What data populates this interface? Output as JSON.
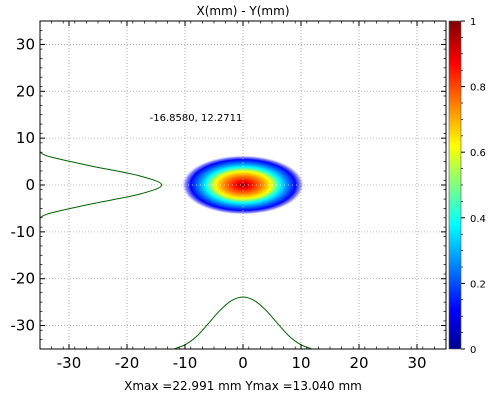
{
  "chart_data": {
    "type": "heatmap",
    "title": "X(mm) - Y(mm)",
    "xlim": [
      -35,
      35
    ],
    "ylim": [
      -35,
      35
    ],
    "x_ticks": [
      -30,
      -20,
      -10,
      0,
      10,
      20,
      30
    ],
    "y_ticks": [
      30,
      20,
      10,
      0,
      -10,
      -20,
      -30
    ],
    "grid": true,
    "colorbar": {
      "min": 0,
      "max": 1,
      "ticks": [
        0,
        0.2,
        0.4,
        0.6,
        0.8,
        1
      ],
      "tick_labels": [
        "0",
        "0.2",
        "0.4",
        "0.6",
        "0.8",
        "1"
      ],
      "colormap": [
        "#00008f",
        "#0000ff",
        "#00ffff",
        "#ffff00",
        "#ff0000",
        "#800000"
      ]
    },
    "beam": {
      "center": [
        0,
        0
      ],
      "semi_axis_x": 9.5,
      "semi_axis_y": 5.7
    },
    "x_profile": {
      "x": [
        -12,
        -10,
        -8,
        -6,
        -4,
        -2,
        0,
        2,
        4,
        6,
        8,
        10,
        12
      ],
      "y": [
        -35,
        -34.1,
        -32.3,
        -29.6,
        -26.8,
        -24.7,
        -23.9,
        -24.7,
        -26.8,
        -29.6,
        -32.3,
        -34.1,
        -35
      ]
    },
    "y_profile": {
      "y": [
        7,
        6,
        4,
        2,
        0,
        -2,
        -4,
        -6,
        -7
      ],
      "x": [
        -35,
        -33.2,
        -26,
        -18,
        -14,
        -18,
        -26,
        -33.2,
        -35
      ]
    },
    "annotation": "-16.8580, 12.2711",
    "footer": "Xmax =22.991 mm  Ymax =13.040 mm",
    "colors": {
      "profile_line": "#006400",
      "grid": "#a0a0a0",
      "axis": "#000000"
    }
  }
}
